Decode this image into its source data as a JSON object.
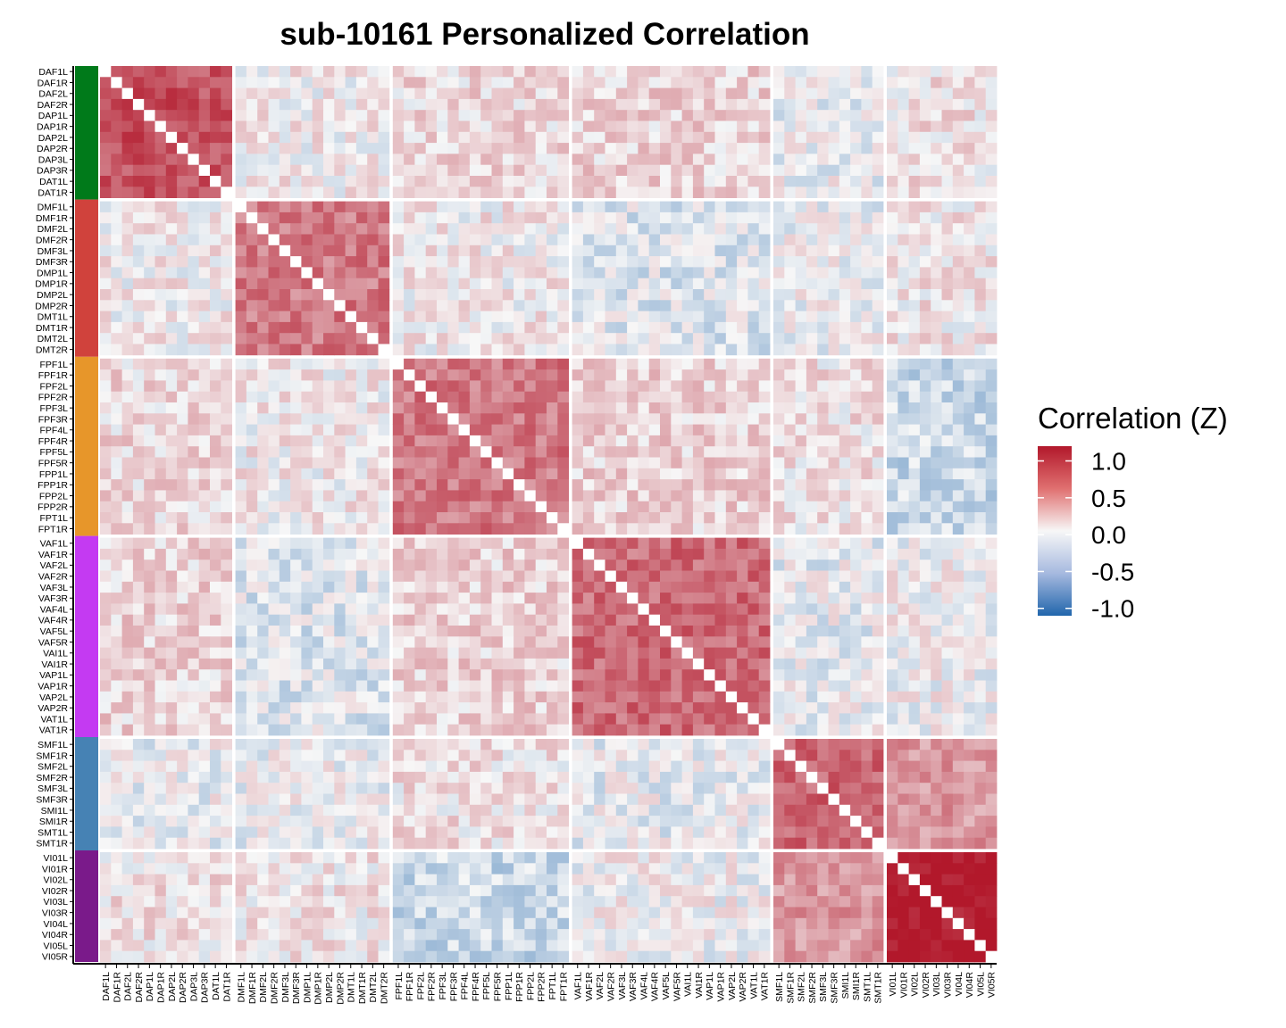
{
  "chart_data": {
    "type": "heatmap",
    "title": "sub-10161 Personalized Correlation",
    "labels": [
      "DAF1L",
      "DAF1R",
      "DAF2L",
      "DAF2R",
      "DAP1L",
      "DAP1R",
      "DAP2L",
      "DAP2R",
      "DAP3L",
      "DAP3R",
      "DAT1L",
      "DAT1R",
      "DMF1L",
      "DMF1R",
      "DMF2L",
      "DMF2R",
      "DMF3L",
      "DMF3R",
      "DMP1L",
      "DMP1R",
      "DMP2L",
      "DMP2R",
      "DMT1L",
      "DMT1R",
      "DMT2L",
      "DMT2R",
      "FPF1L",
      "FPF1R",
      "FPF2L",
      "FPF2R",
      "FPF3L",
      "FPF3R",
      "FPF4L",
      "FPF4R",
      "FPF5L",
      "FPF5R",
      "FPP1L",
      "FPP1R",
      "FPP2L",
      "FPP2R",
      "FPT1L",
      "FPT1R",
      "VAF1L",
      "VAF1R",
      "VAF2L",
      "VAF2R",
      "VAF3L",
      "VAF3R",
      "VAF4L",
      "VAF4R",
      "VAF5L",
      "VAF5R",
      "VAI1L",
      "VAI1R",
      "VAP1L",
      "VAP1R",
      "VAP2L",
      "VAP2R",
      "VAT1L",
      "VAT1R",
      "SMF1L",
      "SMF1R",
      "SMF2L",
      "SMF2R",
      "SMF3L",
      "SMF3R",
      "SMI1L",
      "SMI1R",
      "SMT1L",
      "SMT1R",
      "VI01L",
      "VI01R",
      "VI02L",
      "VI02R",
      "VI03L",
      "VI03R",
      "VI04L",
      "VI04R",
      "VI05L",
      "VI05R"
    ],
    "networks": [
      {
        "count": 12,
        "color": "#007a1a"
      },
      {
        "count": 14,
        "color": "#d0423c"
      },
      {
        "count": 16,
        "color": "#e7962a"
      },
      {
        "count": 18,
        "color": "#c43af2"
      },
      {
        "count": 10,
        "color": "#4682b4"
      },
      {
        "count": 10,
        "color": "#7a1a8a"
      }
    ],
    "block_means": [
      [
        0.85,
        0.03,
        0.12,
        0.15,
        -0.03,
        0.08
      ],
      [
        0.03,
        0.62,
        0.04,
        -0.1,
        -0.03,
        0.06
      ],
      [
        0.12,
        0.04,
        0.62,
        0.16,
        0.08,
        -0.2
      ],
      [
        0.15,
        -0.1,
        0.16,
        0.7,
        -0.05,
        0.0
      ],
      [
        -0.03,
        -0.03,
        0.08,
        -0.05,
        0.72,
        0.45
      ],
      [
        0.08,
        0.06,
        -0.2,
        0.0,
        0.45,
        1.25
      ]
    ],
    "legend": {
      "title": "Correlation (Z)",
      "ticks": [
        1.0,
        0.5,
        0.0,
        -0.5,
        -1.0
      ],
      "tick_labels": [
        "1.0",
        "0.5",
        "0.0",
        "-0.5",
        "-1.0"
      ],
      "limits": [
        -1.1,
        1.2
      ],
      "position": "right"
    },
    "colors": {
      "high": "#b2182b",
      "mid": "#f7f7f7",
      "low": "#2166ac",
      "diagonal": "#ffffff"
    }
  }
}
